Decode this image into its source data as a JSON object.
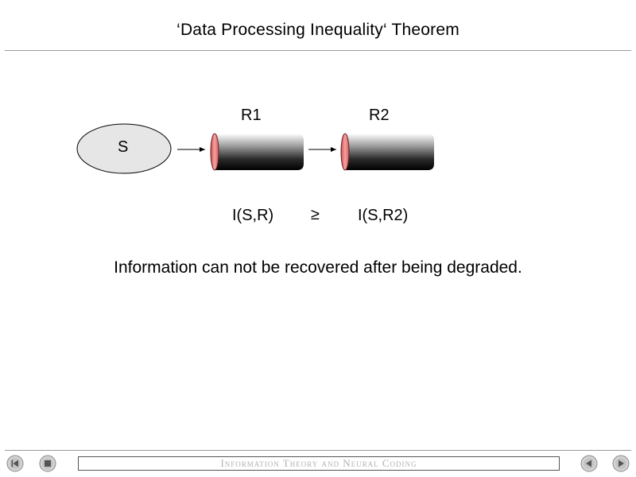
{
  "slide": {
    "title": "‘Data Processing Inequality‘ Theorem",
    "statement": "Information can not be recovered after being degraded."
  },
  "diagram": {
    "source_label": "S",
    "relay1_label": "R1",
    "relay2_label": "R2",
    "inequality_left": "I(S,R)",
    "inequality_symbol": "≥",
    "inequality_right": "I(S,R2)"
  },
  "footer": {
    "course_title": "Information Theory and Neural Coding"
  },
  "nav": {
    "first_icon": "first-slide-icon",
    "stop_icon": "stop-icon",
    "prev_icon": "previous-slide-icon",
    "next_icon": "next-slide-icon"
  },
  "colors": {
    "ellipse_fill": "#e6e6e6",
    "cylinder_end": "#f08080",
    "nav_button": "#d0d0d0"
  }
}
